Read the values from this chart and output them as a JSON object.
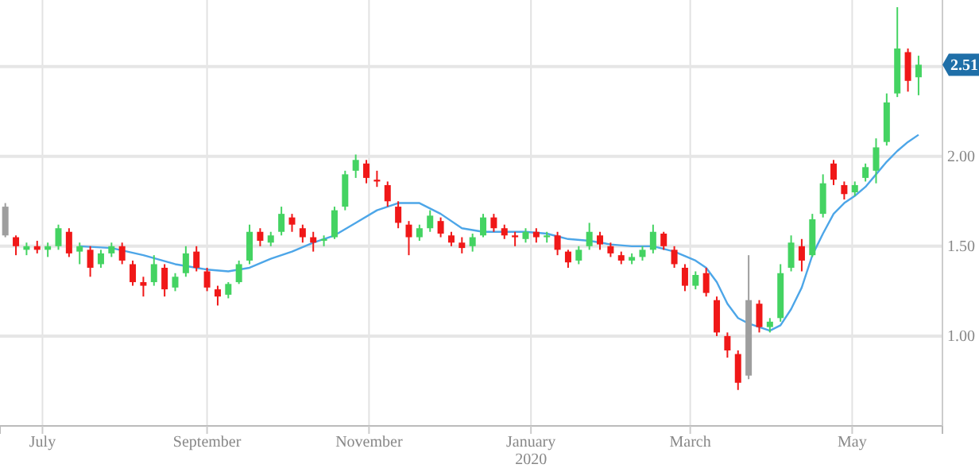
{
  "chart_data": {
    "type": "candlestick",
    "x": [
      "2019-06-17",
      "2019-06-21",
      "2019-06-25",
      "2019-06-29",
      "2019-07-03",
      "2019-07-07",
      "2019-07-11",
      "2019-07-15",
      "2019-07-19",
      "2019-07-23",
      "2019-07-27",
      "2019-07-31",
      "2019-08-04",
      "2019-08-08",
      "2019-08-12",
      "2019-08-16",
      "2019-08-20",
      "2019-08-24",
      "2019-08-28",
      "2019-09-01",
      "2019-09-05",
      "2019-09-09",
      "2019-09-13",
      "2019-09-17",
      "2019-09-21",
      "2019-09-25",
      "2019-09-29",
      "2019-10-03",
      "2019-10-07",
      "2019-10-11",
      "2019-10-15",
      "2019-10-19",
      "2019-10-23",
      "2019-10-27",
      "2019-10-31",
      "2019-11-04",
      "2019-11-08",
      "2019-11-12",
      "2019-11-16",
      "2019-11-20",
      "2019-11-24",
      "2019-11-28",
      "2019-12-02",
      "2019-12-06",
      "2019-12-10",
      "2019-12-14",
      "2019-12-18",
      "2019-12-22",
      "2019-12-26",
      "2019-12-30",
      "2020-01-03",
      "2020-01-07",
      "2020-01-11",
      "2020-01-15",
      "2020-01-19",
      "2020-01-23",
      "2020-01-27",
      "2020-01-31",
      "2020-02-04",
      "2020-02-08",
      "2020-02-12",
      "2020-02-16",
      "2020-02-20",
      "2020-02-24",
      "2020-02-28",
      "2020-03-03",
      "2020-03-07",
      "2020-03-11",
      "2020-03-15",
      "2020-03-19",
      "2020-03-23",
      "2020-03-27",
      "2020-03-31",
      "2020-04-04",
      "2020-04-08",
      "2020-04-12",
      "2020-04-16",
      "2020-04-20",
      "2020-04-24",
      "2020-04-28",
      "2020-05-02",
      "2020-05-06",
      "2020-05-10",
      "2020-05-14",
      "2020-05-18",
      "2020-05-22",
      "2020-05-26"
    ],
    "ohlc": [
      [
        1.72,
        1.74,
        1.55,
        1.56
      ],
      [
        1.55,
        1.56,
        1.45,
        1.5
      ],
      [
        1.48,
        1.52,
        1.45,
        1.5
      ],
      [
        1.5,
        1.53,
        1.46,
        1.48
      ],
      [
        1.48,
        1.52,
        1.44,
        1.5
      ],
      [
        1.5,
        1.62,
        1.48,
        1.6
      ],
      [
        1.58,
        1.6,
        1.44,
        1.46
      ],
      [
        1.47,
        1.52,
        1.4,
        1.5
      ],
      [
        1.48,
        1.5,
        1.33,
        1.38
      ],
      [
        1.4,
        1.48,
        1.38,
        1.46
      ],
      [
        1.46,
        1.52,
        1.44,
        1.5
      ],
      [
        1.5,
        1.52,
        1.4,
        1.42
      ],
      [
        1.4,
        1.42,
        1.28,
        1.3
      ],
      [
        1.3,
        1.33,
        1.22,
        1.28
      ],
      [
        1.3,
        1.45,
        1.28,
        1.4
      ],
      [
        1.38,
        1.4,
        1.22,
        1.26
      ],
      [
        1.27,
        1.35,
        1.25,
        1.33
      ],
      [
        1.35,
        1.5,
        1.33,
        1.46
      ],
      [
        1.47,
        1.5,
        1.36,
        1.38
      ],
      [
        1.36,
        1.38,
        1.25,
        1.27
      ],
      [
        1.26,
        1.28,
        1.17,
        1.22
      ],
      [
        1.23,
        1.3,
        1.21,
        1.29
      ],
      [
        1.3,
        1.42,
        1.29,
        1.4
      ],
      [
        1.42,
        1.62,
        1.4,
        1.58
      ],
      [
        1.58,
        1.6,
        1.5,
        1.53
      ],
      [
        1.52,
        1.58,
        1.5,
        1.56
      ],
      [
        1.58,
        1.72,
        1.56,
        1.68
      ],
      [
        1.66,
        1.68,
        1.58,
        1.62
      ],
      [
        1.6,
        1.62,
        1.52,
        1.55
      ],
      [
        1.55,
        1.58,
        1.47,
        1.52
      ],
      [
        1.53,
        1.56,
        1.5,
        1.54
      ],
      [
        1.55,
        1.72,
        1.54,
        1.7
      ],
      [
        1.72,
        1.92,
        1.7,
        1.9
      ],
      [
        1.92,
        2.01,
        1.88,
        1.98
      ],
      [
        1.96,
        1.98,
        1.85,
        1.88
      ],
      [
        1.87,
        1.92,
        1.83,
        1.86
      ],
      [
        1.84,
        1.86,
        1.72,
        1.75
      ],
      [
        1.72,
        1.75,
        1.6,
        1.63
      ],
      [
        1.62,
        1.64,
        1.45,
        1.55
      ],
      [
        1.55,
        1.62,
        1.53,
        1.6
      ],
      [
        1.6,
        1.7,
        1.58,
        1.67
      ],
      [
        1.64,
        1.66,
        1.55,
        1.57
      ],
      [
        1.56,
        1.58,
        1.5,
        1.52
      ],
      [
        1.52,
        1.55,
        1.46,
        1.49
      ],
      [
        1.5,
        1.57,
        1.47,
        1.55
      ],
      [
        1.56,
        1.68,
        1.55,
        1.66
      ],
      [
        1.66,
        1.68,
        1.58,
        1.6
      ],
      [
        1.6,
        1.62,
        1.54,
        1.56
      ],
      [
        1.56,
        1.58,
        1.5,
        1.55
      ],
      [
        1.54,
        1.6,
        1.52,
        1.58
      ],
      [
        1.58,
        1.6,
        1.52,
        1.55
      ],
      [
        1.55,
        1.58,
        1.52,
        1.56
      ],
      [
        1.56,
        1.58,
        1.45,
        1.48
      ],
      [
        1.47,
        1.48,
        1.38,
        1.41
      ],
      [
        1.42,
        1.5,
        1.4,
        1.48
      ],
      [
        1.5,
        1.63,
        1.48,
        1.58
      ],
      [
        1.56,
        1.58,
        1.48,
        1.51
      ],
      [
        1.5,
        1.52,
        1.44,
        1.46
      ],
      [
        1.45,
        1.47,
        1.4,
        1.42
      ],
      [
        1.42,
        1.46,
        1.4,
        1.44
      ],
      [
        1.44,
        1.5,
        1.42,
        1.48
      ],
      [
        1.48,
        1.62,
        1.46,
        1.58
      ],
      [
        1.57,
        1.58,
        1.48,
        1.5
      ],
      [
        1.48,
        1.5,
        1.38,
        1.4
      ],
      [
        1.38,
        1.4,
        1.25,
        1.28
      ],
      [
        1.28,
        1.36,
        1.26,
        1.34
      ],
      [
        1.35,
        1.38,
        1.22,
        1.24
      ],
      [
        1.2,
        1.22,
        1.0,
        1.02
      ],
      [
        1.0,
        1.02,
        0.88,
        0.92
      ],
      [
        0.9,
        0.92,
        0.7,
        0.74
      ],
      [
        0.78,
        1.45,
        0.76,
        1.2
      ],
      [
        1.18,
        1.2,
        1.02,
        1.05
      ],
      [
        1.05,
        1.1,
        1.02,
        1.08
      ],
      [
        1.1,
        1.4,
        1.08,
        1.35
      ],
      [
        1.38,
        1.56,
        1.36,
        1.52
      ],
      [
        1.5,
        1.54,
        1.36,
        1.42
      ],
      [
        1.45,
        1.68,
        1.44,
        1.65
      ],
      [
        1.68,
        1.9,
        1.66,
        1.85
      ],
      [
        1.96,
        1.98,
        1.84,
        1.87
      ],
      [
        1.84,
        1.86,
        1.76,
        1.79
      ],
      [
        1.8,
        1.86,
        1.78,
        1.84
      ],
      [
        1.88,
        1.96,
        1.86,
        1.94
      ],
      [
        1.92,
        2.1,
        1.85,
        2.05
      ],
      [
        2.08,
        2.35,
        2.06,
        2.3
      ],
      [
        2.35,
        2.83,
        2.33,
        2.6
      ],
      [
        2.58,
        2.6,
        2.36,
        2.42
      ],
      [
        2.44,
        2.56,
        2.34,
        2.51
      ]
    ],
    "colors": [
      "#9e9e9e",
      "#f01818",
      "#44d362",
      "#f01818",
      "#44d362",
      "#44d362",
      "#f01818",
      "#44d362",
      "#f01818",
      "#44d362",
      "#44d362",
      "#f01818",
      "#f01818",
      "#f01818",
      "#44d362",
      "#f01818",
      "#44d362",
      "#44d362",
      "#f01818",
      "#f01818",
      "#f01818",
      "#44d362",
      "#44d362",
      "#44d362",
      "#f01818",
      "#44d362",
      "#44d362",
      "#f01818",
      "#f01818",
      "#f01818",
      "#44d362",
      "#44d362",
      "#44d362",
      "#44d362",
      "#f01818",
      "#f01818",
      "#f01818",
      "#f01818",
      "#f01818",
      "#44d362",
      "#44d362",
      "#f01818",
      "#f01818",
      "#f01818",
      "#44d362",
      "#44d362",
      "#f01818",
      "#f01818",
      "#f01818",
      "#44d362",
      "#f01818",
      "#44d362",
      "#f01818",
      "#f01818",
      "#44d362",
      "#44d362",
      "#f01818",
      "#f01818",
      "#f01818",
      "#44d362",
      "#44d362",
      "#44d362",
      "#f01818",
      "#f01818",
      "#f01818",
      "#44d362",
      "#f01818",
      "#f01818",
      "#f01818",
      "#f01818",
      "#9e9e9e",
      "#f01818",
      "#44d362",
      "#44d362",
      "#44d362",
      "#f01818",
      "#44d362",
      "#44d362",
      "#f01818",
      "#f01818",
      "#44d362",
      "#44d362",
      "#44d362",
      "#44d362",
      "#44d362",
      "#f01818",
      "#44d362"
    ],
    "series": [
      {
        "type": "line",
        "color": "#4da6e8",
        "x": [
          "2019-07-15",
          "2019-07-27",
          "2019-08-08",
          "2019-08-20",
          "2019-09-01",
          "2019-09-09",
          "2019-09-17",
          "2019-09-25",
          "2019-10-03",
          "2019-10-11",
          "2019-10-19",
          "2019-10-27",
          "2019-11-04",
          "2019-11-12",
          "2019-11-20",
          "2019-11-28",
          "2019-12-06",
          "2019-12-14",
          "2019-12-22",
          "2019-12-30",
          "2020-01-07",
          "2020-01-15",
          "2020-01-23",
          "2020-01-31",
          "2020-02-08",
          "2020-02-16",
          "2020-02-24",
          "2020-03-03",
          "2020-03-07",
          "2020-03-11",
          "2020-03-15",
          "2020-03-19",
          "2020-03-23",
          "2020-03-27",
          "2020-03-31",
          "2020-04-04",
          "2020-04-08",
          "2020-04-12",
          "2020-04-16",
          "2020-04-20",
          "2020-04-24",
          "2020-04-28",
          "2020-05-02",
          "2020-05-06",
          "2020-05-10",
          "2020-05-14",
          "2020-05-18",
          "2020-05-22",
          "2020-05-26"
        ],
        "values": [
          1.5,
          1.49,
          1.45,
          1.4,
          1.37,
          1.36,
          1.38,
          1.43,
          1.47,
          1.52,
          1.56,
          1.63,
          1.7,
          1.74,
          1.74,
          1.68,
          1.6,
          1.58,
          1.58,
          1.58,
          1.57,
          1.54,
          1.53,
          1.51,
          1.5,
          1.5,
          1.47,
          1.42,
          1.38,
          1.3,
          1.18,
          1.1,
          1.07,
          1.05,
          1.03,
          1.06,
          1.15,
          1.27,
          1.45,
          1.57,
          1.68,
          1.74,
          1.78,
          1.83,
          1.9,
          1.97,
          2.03,
          2.08,
          2.12
        ]
      }
    ],
    "xlim": [
      "2019-06-15",
      "2020-06-04"
    ],
    "xticks": [
      {
        "value": "2019-07-01",
        "label": "July"
      },
      {
        "value": "2019-09-01",
        "label": "September"
      },
      {
        "value": "2019-11-01",
        "label": "November"
      },
      {
        "value": "2020-01-01",
        "label": "January\n2020"
      },
      {
        "value": "2020-03-01",
        "label": "March"
      },
      {
        "value": "2020-05-01",
        "label": "May"
      }
    ],
    "ylim": [
      0.5,
      2.87
    ],
    "yticks": [
      {
        "value": 1,
        "label": "1.00"
      },
      {
        "value": 1.5,
        "label": "1.50"
      },
      {
        "value": 2,
        "label": "2.00"
      },
      {
        "value": 2.5,
        "label": null
      }
    ],
    "grid": true,
    "annotations": [
      "2.51"
    ]
  }
}
